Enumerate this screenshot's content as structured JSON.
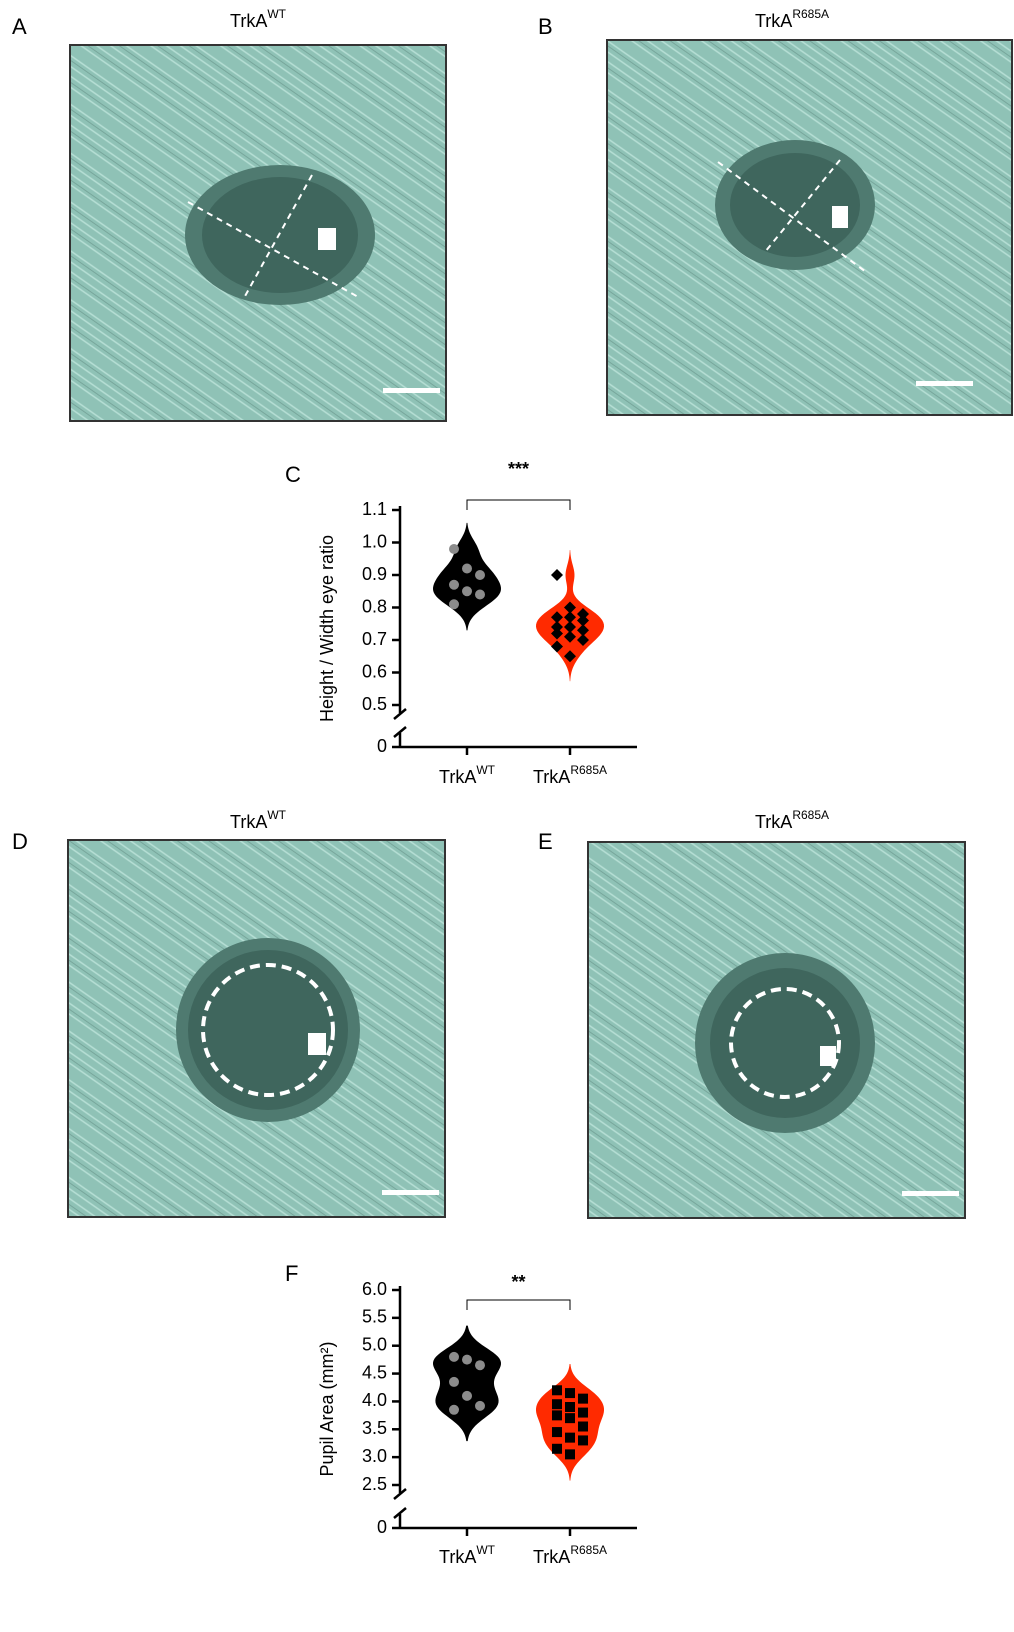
{
  "panels": [
    {
      "label": "A",
      "title": {
        "base": "TrkA",
        "sup": "WT"
      }
    },
    {
      "label": "B",
      "title": {
        "base": "TrkA",
        "sup": "R685A"
      }
    },
    {
      "label": "D",
      "title": {
        "base": "TrkA",
        "sup": "WT"
      }
    },
    {
      "label": "E",
      "title": {
        "base": "TrkA",
        "sup": "R685A"
      }
    }
  ],
  "chart_data": [
    {
      "type": "violin",
      "panel_label": "C",
      "y_label": "Height / Width eye ratio",
      "annotation": "***",
      "categories": [
        {
          "base": "TrkA",
          "sup": "WT"
        },
        {
          "base": "TrkA",
          "sup": "R685A"
        }
      ],
      "series": [
        {
          "color": "#000000",
          "point_color": "#8c8c8c",
          "marker": "circle",
          "values": [
            0.98,
            0.92,
            0.9,
            0.87,
            0.85,
            0.84,
            0.81
          ]
        },
        {
          "color": "#ff2a00",
          "point_color": "#000000",
          "marker": "diamond",
          "values": [
            0.9,
            0.8,
            0.78,
            0.77,
            0.77,
            0.76,
            0.74,
            0.74,
            0.73,
            0.72,
            0.71,
            0.7,
            0.68,
            0.65
          ]
        }
      ],
      "ylim": [
        0.5,
        1.1
      ],
      "yticks": [
        0.5,
        0.6,
        0.7,
        0.8,
        0.9,
        {
          "value": 1,
          "label": "1.0"
        },
        1.1
      ],
      "break_tick": 0
    },
    {
      "type": "violin",
      "panel_label": "F",
      "y_label": "Pupil Area (mm²)",
      "annotation": "**",
      "categories": [
        {
          "base": "TrkA",
          "sup": "WT"
        },
        {
          "base": "TrkA",
          "sup": "R685A"
        }
      ],
      "series": [
        {
          "color": "#000000",
          "point_color": "#8c8c8c",
          "marker": "circle",
          "values": [
            4.8,
            4.75,
            4.65,
            4.35,
            4.1,
            3.92,
            3.85
          ]
        },
        {
          "color": "#ff2a00",
          "point_color": "#000000",
          "marker": "square",
          "values": [
            4.2,
            4.15,
            4.05,
            3.95,
            3.9,
            3.8,
            3.75,
            3.7,
            3.55,
            3.45,
            3.35,
            3.3,
            3.15,
            3.05
          ]
        }
      ],
      "ylim": [
        2.5,
        6.0
      ],
      "yticks": [
        2.5,
        {
          "value": 3,
          "label": "3.0"
        },
        3.5,
        {
          "value": 4,
          "label": "4.0"
        },
        4.5,
        {
          "value": 5,
          "label": "5.0"
        },
        5.5,
        {
          "value": 6,
          "label": "6.0"
        }
      ],
      "break_tick": 0
    }
  ]
}
